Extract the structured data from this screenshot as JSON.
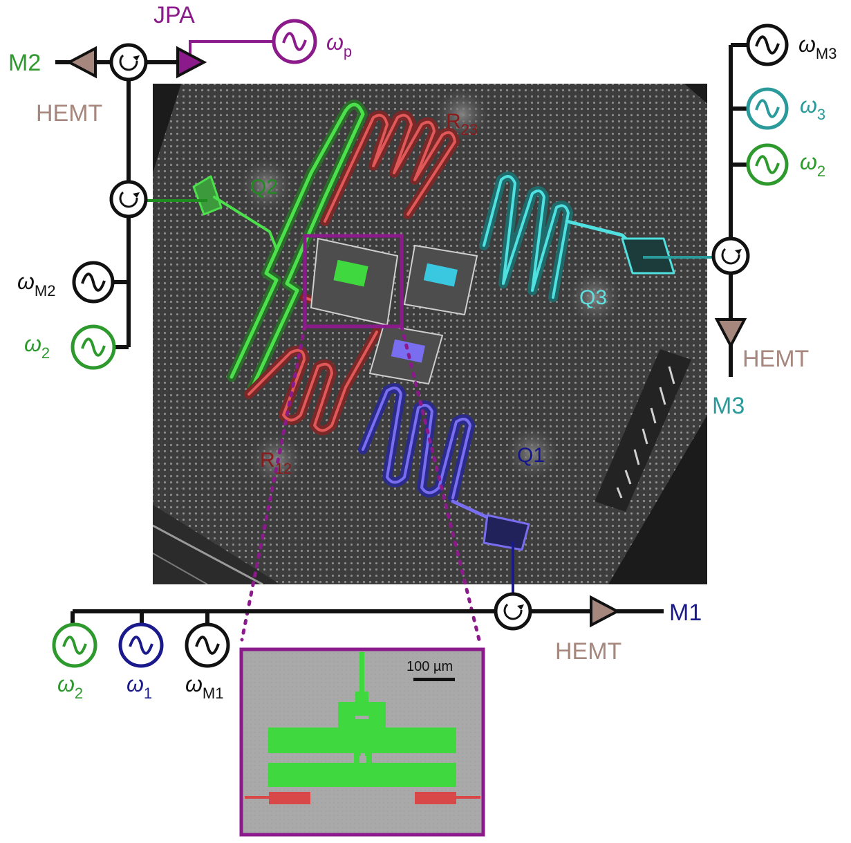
{
  "colors": {
    "black": "#111111",
    "green": "#2e9a2e",
    "blue": "#1a1a8c",
    "teal": "#2a9a9a",
    "purple": "#8b1a8b",
    "hemt": "#a6877d",
    "darkred": "#8b1a1a",
    "q2_label": "#1e8c1e",
    "q3_label": "#5fe0e0",
    "q1_label": "#14148c",
    "inset_green": "#3fd93f",
    "inset_red": "#d84848",
    "chip_bg": "#3a3a3a"
  },
  "labels": {
    "jpa": "JPA",
    "m1": "M1",
    "m2": "M2",
    "m3": "M3",
    "hemt_m1": "HEMT",
    "hemt_m2": "HEMT",
    "hemt_m3": "HEMT",
    "q1": "Q1",
    "q2": "Q2",
    "q3": "Q3",
    "r12_main": "R",
    "r12_sub": "12",
    "r23_main": "R",
    "r23_sub": "23",
    "scale_bar": "100 µm"
  },
  "sources": {
    "omega_p": {
      "sym": "ω",
      "sub": "p",
      "color_key": "purple"
    },
    "omega_m3": {
      "sym": "ω",
      "sub": "M3",
      "color_key": "black"
    },
    "omega_3": {
      "sym": "ω",
      "sub": "3",
      "color_key": "teal"
    },
    "omega_2_right": {
      "sym": "ω",
      "sub": "2",
      "color_key": "green"
    },
    "omega_m2": {
      "sym": "ω",
      "sub": "M2",
      "color_key": "black"
    },
    "omega_2_left": {
      "sym": "ω",
      "sub": "2",
      "color_key": "green"
    },
    "omega_2_bottom": {
      "sym": "ω",
      "sub": "2",
      "color_key": "green"
    },
    "omega_1": {
      "sym": "ω",
      "sub": "1",
      "color_key": "blue"
    },
    "omega_m1": {
      "sym": "ω",
      "sub": "M1",
      "color_key": "black"
    }
  },
  "icons": {
    "source": "sine-source-icon",
    "circulator": "circulator-icon",
    "amplifier": "amplifier-triangle-icon"
  }
}
